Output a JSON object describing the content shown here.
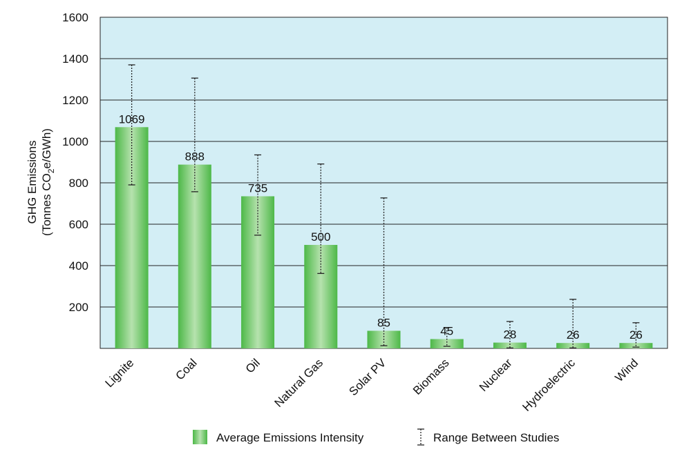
{
  "chart_data": {
    "type": "bar",
    "title": "",
    "xlabel": "",
    "ylabel": {
      "line1": "GHG Emissions",
      "line2_prefix": "(Tonnes CO",
      "line2_sub": "2",
      "line2_suffix": "e/GWh)"
    },
    "ylim": [
      0,
      1600
    ],
    "yticks": [
      200,
      400,
      600,
      800,
      1000,
      1200,
      1400,
      1600
    ],
    "grid": true,
    "categories": [
      "Lignite",
      "Coal",
      "Oil",
      "Natural Gas",
      "Solar PV",
      "Biomass",
      "Nuclear",
      "Hydroelectric",
      "Wind"
    ],
    "series": [
      {
        "name": "Average Emissions Intensity",
        "values": [
          1069,
          888,
          735,
          500,
          85,
          45,
          28,
          26,
          26
        ],
        "data_labels": [
          "1069",
          "888",
          "735",
          "500",
          "85",
          "45",
          "28",
          "26",
          "26"
        ]
      }
    ],
    "ranges": {
      "name": "Range Between Studies",
      "low": [
        790,
        757,
        547,
        362,
        13,
        10,
        2,
        2,
        6
      ],
      "high": [
        1370,
        1306,
        935,
        891,
        727,
        101,
        130,
        237,
        124
      ]
    },
    "legend": {
      "placement": "bottom",
      "items": [
        "Average Emissions Intensity",
        "Range Between Studies"
      ]
    },
    "colors": {
      "plot_background": "#d3eef5",
      "bar_dark": "#4db848",
      "bar_light": "#b6e2ae",
      "gridline": "#222222",
      "range_line": "#222222"
    }
  }
}
